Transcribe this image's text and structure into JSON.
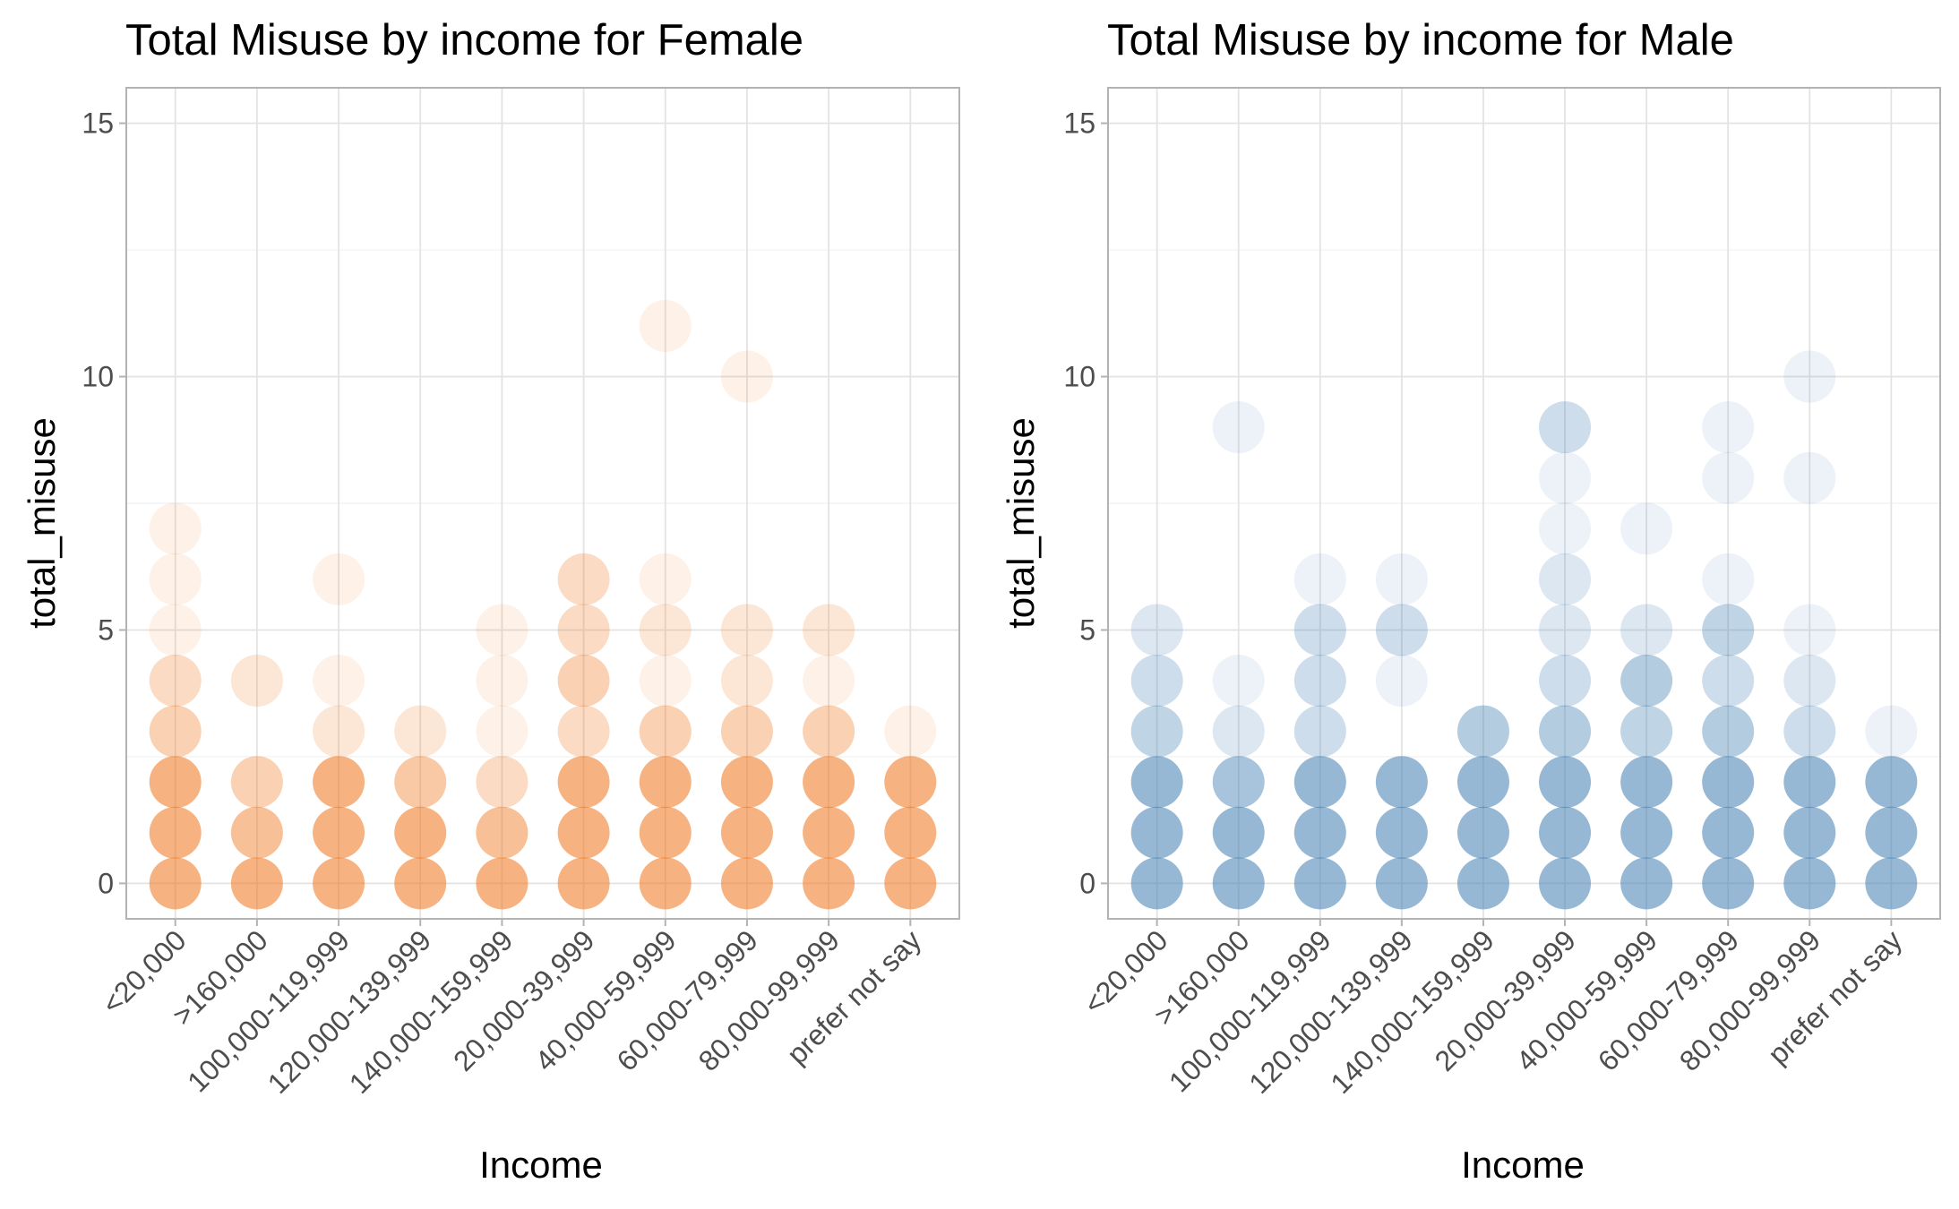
{
  "chart_data": [
    {
      "type": "scatter",
      "title": "Total Misuse by income for Female",
      "xlabel": "Income",
      "ylabel": "total_misuse",
      "categories": [
        "<20,000",
        ">160,000",
        "100,000-119,999",
        "120,000-139,999",
        "140,000-159,999",
        "20,000-39,999",
        "40,000-59,999",
        "60,000-79,999",
        "80,000-99,999",
        "prefer not say"
      ],
      "ylim": [
        -0.7,
        15.7
      ],
      "yticks": [
        0,
        5,
        10,
        15
      ],
      "grid": true,
      "color": "#f07a22",
      "points": [
        {
          "x": "<20,000",
          "y": 0,
          "n": 8
        },
        {
          "x": "<20,000",
          "y": 1,
          "n": 8
        },
        {
          "x": "<20,000",
          "y": 2,
          "n": 8
        },
        {
          "x": "<20,000",
          "y": 3,
          "n": 4
        },
        {
          "x": "<20,000",
          "y": 4,
          "n": 3
        },
        {
          "x": "<20,000",
          "y": 5,
          "n": 1
        },
        {
          "x": "<20,000",
          "y": 6,
          "n": 1
        },
        {
          "x": "<20,000",
          "y": 7,
          "n": 1
        },
        {
          "x": ">160,000",
          "y": 0,
          "n": 8
        },
        {
          "x": ">160,000",
          "y": 1,
          "n": 6
        },
        {
          "x": ">160,000",
          "y": 2,
          "n": 4
        },
        {
          "x": ">160,000",
          "y": 4,
          "n": 2
        },
        {
          "x": "100,000-119,999",
          "y": 0,
          "n": 8
        },
        {
          "x": "100,000-119,999",
          "y": 1,
          "n": 8
        },
        {
          "x": "100,000-119,999",
          "y": 2,
          "n": 8
        },
        {
          "x": "100,000-119,999",
          "y": 3,
          "n": 2
        },
        {
          "x": "100,000-119,999",
          "y": 4,
          "n": 1
        },
        {
          "x": "100,000-119,999",
          "y": 6,
          "n": 1
        },
        {
          "x": "120,000-139,999",
          "y": 0,
          "n": 8
        },
        {
          "x": "120,000-139,999",
          "y": 1,
          "n": 8
        },
        {
          "x": "120,000-139,999",
          "y": 2,
          "n": 5
        },
        {
          "x": "120,000-139,999",
          "y": 3,
          "n": 2
        },
        {
          "x": "140,000-159,999",
          "y": 0,
          "n": 8
        },
        {
          "x": "140,000-159,999",
          "y": 1,
          "n": 6
        },
        {
          "x": "140,000-159,999",
          "y": 2,
          "n": 3
        },
        {
          "x": "140,000-159,999",
          "y": 3,
          "n": 1
        },
        {
          "x": "140,000-159,999",
          "y": 4,
          "n": 1
        },
        {
          "x": "140,000-159,999",
          "y": 5,
          "n": 1
        },
        {
          "x": "20,000-39,999",
          "y": 0,
          "n": 8
        },
        {
          "x": "20,000-39,999",
          "y": 1,
          "n": 8
        },
        {
          "x": "20,000-39,999",
          "y": 2,
          "n": 8
        },
        {
          "x": "20,000-39,999",
          "y": 3,
          "n": 3
        },
        {
          "x": "20,000-39,999",
          "y": 4,
          "n": 4
        },
        {
          "x": "20,000-39,999",
          "y": 5,
          "n": 3
        },
        {
          "x": "20,000-39,999",
          "y": 6,
          "n": 3
        },
        {
          "x": "40,000-59,999",
          "y": 0,
          "n": 8
        },
        {
          "x": "40,000-59,999",
          "y": 1,
          "n": 8
        },
        {
          "x": "40,000-59,999",
          "y": 2,
          "n": 8
        },
        {
          "x": "40,000-59,999",
          "y": 3,
          "n": 4
        },
        {
          "x": "40,000-59,999",
          "y": 4,
          "n": 1
        },
        {
          "x": "40,000-59,999",
          "y": 5,
          "n": 2
        },
        {
          "x": "40,000-59,999",
          "y": 6,
          "n": 1
        },
        {
          "x": "40,000-59,999",
          "y": 11,
          "n": 1
        },
        {
          "x": "60,000-79,999",
          "y": 0,
          "n": 8
        },
        {
          "x": "60,000-79,999",
          "y": 1,
          "n": 8
        },
        {
          "x": "60,000-79,999",
          "y": 2,
          "n": 8
        },
        {
          "x": "60,000-79,999",
          "y": 3,
          "n": 4
        },
        {
          "x": "60,000-79,999",
          "y": 4,
          "n": 2
        },
        {
          "x": "60,000-79,999",
          "y": 5,
          "n": 2
        },
        {
          "x": "60,000-79,999",
          "y": 10,
          "n": 1
        },
        {
          "x": "80,000-99,999",
          "y": 0,
          "n": 8
        },
        {
          "x": "80,000-99,999",
          "y": 1,
          "n": 8
        },
        {
          "x": "80,000-99,999",
          "y": 2,
          "n": 8
        },
        {
          "x": "80,000-99,999",
          "y": 3,
          "n": 4
        },
        {
          "x": "80,000-99,999",
          "y": 4,
          "n": 1
        },
        {
          "x": "80,000-99,999",
          "y": 5,
          "n": 2
        },
        {
          "x": "prefer not say",
          "y": 0,
          "n": 8
        },
        {
          "x": "prefer not say",
          "y": 1,
          "n": 8
        },
        {
          "x": "prefer not say",
          "y": 2,
          "n": 8
        },
        {
          "x": "prefer not say",
          "y": 3,
          "n": 1
        }
      ]
    },
    {
      "type": "scatter",
      "title": "Total Misuse by income for Male",
      "xlabel": "Income",
      "ylabel": "total_misuse",
      "categories": [
        "<20,000",
        ">160,000",
        "100,000-119,999",
        "120,000-139,999",
        "140,000-159,999",
        "20,000-39,999",
        "40,000-59,999",
        "60,000-79,999",
        "80,000-99,999",
        "prefer not say"
      ],
      "ylim": [
        -0.7,
        15.7
      ],
      "yticks": [
        0,
        5,
        10,
        15
      ],
      "grid": true,
      "color": "#4682b4",
      "points": [
        {
          "x": "<20,000",
          "y": 0,
          "n": 8
        },
        {
          "x": "<20,000",
          "y": 1,
          "n": 8
        },
        {
          "x": "<20,000",
          "y": 2,
          "n": 8
        },
        {
          "x": "<20,000",
          "y": 3,
          "n": 4
        },
        {
          "x": "<20,000",
          "y": 4,
          "n": 3
        },
        {
          "x": "<20,000",
          "y": 5,
          "n": 2
        },
        {
          "x": ">160,000",
          "y": 0,
          "n": 8
        },
        {
          "x": ">160,000",
          "y": 1,
          "n": 8
        },
        {
          "x": ">160,000",
          "y": 2,
          "n": 6
        },
        {
          "x": ">160,000",
          "y": 3,
          "n": 2
        },
        {
          "x": ">160,000",
          "y": 4,
          "n": 1
        },
        {
          "x": ">160,000",
          "y": 9,
          "n": 1
        },
        {
          "x": "100,000-119,999",
          "y": 0,
          "n": 8
        },
        {
          "x": "100,000-119,999",
          "y": 1,
          "n": 8
        },
        {
          "x": "100,000-119,999",
          "y": 2,
          "n": 8
        },
        {
          "x": "100,000-119,999",
          "y": 3,
          "n": 3
        },
        {
          "x": "100,000-119,999",
          "y": 4,
          "n": 3
        },
        {
          "x": "100,000-119,999",
          "y": 5,
          "n": 3
        },
        {
          "x": "100,000-119,999",
          "y": 6,
          "n": 1
        },
        {
          "x": "120,000-139,999",
          "y": 0,
          "n": 8
        },
        {
          "x": "120,000-139,999",
          "y": 1,
          "n": 8
        },
        {
          "x": "120,000-139,999",
          "y": 2,
          "n": 8
        },
        {
          "x": "120,000-139,999",
          "y": 4,
          "n": 1
        },
        {
          "x": "120,000-139,999",
          "y": 5,
          "n": 3
        },
        {
          "x": "120,000-139,999",
          "y": 6,
          "n": 1
        },
        {
          "x": "140,000-159,999",
          "y": 0,
          "n": 8
        },
        {
          "x": "140,000-159,999",
          "y": 1,
          "n": 8
        },
        {
          "x": "140,000-159,999",
          "y": 2,
          "n": 8
        },
        {
          "x": "140,000-159,999",
          "y": 3,
          "n": 5
        },
        {
          "x": "20,000-39,999",
          "y": 0,
          "n": 8
        },
        {
          "x": "20,000-39,999",
          "y": 1,
          "n": 8
        },
        {
          "x": "20,000-39,999",
          "y": 2,
          "n": 8
        },
        {
          "x": "20,000-39,999",
          "y": 3,
          "n": 5
        },
        {
          "x": "20,000-39,999",
          "y": 4,
          "n": 3
        },
        {
          "x": "20,000-39,999",
          "y": 5,
          "n": 2
        },
        {
          "x": "20,000-39,999",
          "y": 6,
          "n": 2
        },
        {
          "x": "20,000-39,999",
          "y": 7,
          "n": 1
        },
        {
          "x": "20,000-39,999",
          "y": 8,
          "n": 1
        },
        {
          "x": "20,000-39,999",
          "y": 9,
          "n": 3
        },
        {
          "x": "40,000-59,999",
          "y": 0,
          "n": 8
        },
        {
          "x": "40,000-59,999",
          "y": 1,
          "n": 8
        },
        {
          "x": "40,000-59,999",
          "y": 2,
          "n": 8
        },
        {
          "x": "40,000-59,999",
          "y": 3,
          "n": 4
        },
        {
          "x": "40,000-59,999",
          "y": 4,
          "n": 5
        },
        {
          "x": "40,000-59,999",
          "y": 5,
          "n": 2
        },
        {
          "x": "40,000-59,999",
          "y": 7,
          "n": 1
        },
        {
          "x": "60,000-79,999",
          "y": 0,
          "n": 8
        },
        {
          "x": "60,000-79,999",
          "y": 1,
          "n": 8
        },
        {
          "x": "60,000-79,999",
          "y": 2,
          "n": 8
        },
        {
          "x": "60,000-79,999",
          "y": 3,
          "n": 5
        },
        {
          "x": "60,000-79,999",
          "y": 4,
          "n": 3
        },
        {
          "x": "60,000-79,999",
          "y": 5,
          "n": 4
        },
        {
          "x": "60,000-79,999",
          "y": 6,
          "n": 1
        },
        {
          "x": "60,000-79,999",
          "y": 8,
          "n": 1
        },
        {
          "x": "60,000-79,999",
          "y": 9,
          "n": 1
        },
        {
          "x": "80,000-99,999",
          "y": 0,
          "n": 8
        },
        {
          "x": "80,000-99,999",
          "y": 1,
          "n": 8
        },
        {
          "x": "80,000-99,999",
          "y": 2,
          "n": 8
        },
        {
          "x": "80,000-99,999",
          "y": 3,
          "n": 3
        },
        {
          "x": "80,000-99,999",
          "y": 4,
          "n": 2
        },
        {
          "x": "80,000-99,999",
          "y": 5,
          "n": 1
        },
        {
          "x": "80,000-99,999",
          "y": 8,
          "n": 1
        },
        {
          "x": "80,000-99,999",
          "y": 10,
          "n": 1
        },
        {
          "x": "prefer not say",
          "y": 0,
          "n": 8
        },
        {
          "x": "prefer not say",
          "y": 1,
          "n": 8
        },
        {
          "x": "prefer not say",
          "y": 2,
          "n": 8
        },
        {
          "x": "prefer not say",
          "y": 3,
          "n": 1
        }
      ]
    }
  ]
}
